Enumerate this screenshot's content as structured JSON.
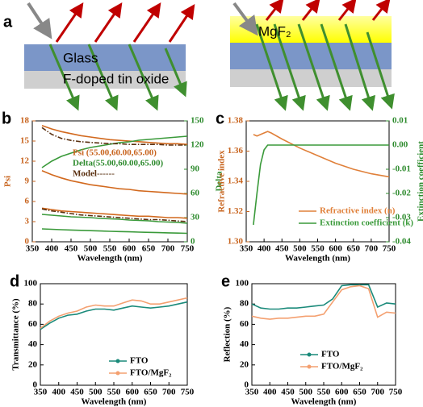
{
  "diagram": {
    "label": "a",
    "layers_left": [
      "Glass",
      "F-doped tin oxide"
    ],
    "layer_right": "MgF₂"
  },
  "chart_data": [
    {
      "type": "line",
      "panel": "b",
      "xlabel": "Wavelength (nm)",
      "ylabel": "Psi",
      "y2label": "Delta",
      "ycolor": "#c8641e",
      "y2color": "#2e8b2e",
      "xlim": [
        350,
        750
      ],
      "xticks": [
        350,
        400,
        450,
        500,
        550,
        600,
        650,
        700,
        750
      ],
      "ylim": [
        0,
        18
      ],
      "yticks": [
        0,
        3,
        6,
        9,
        12,
        15,
        18
      ],
      "y2lim": [
        0,
        150
      ],
      "y2ticks": [
        0,
        30,
        60,
        90,
        120,
        150
      ],
      "x": [
        375,
        400,
        425,
        450,
        475,
        500,
        525,
        550,
        575,
        600,
        625,
        650,
        675,
        700,
        725,
        750
      ],
      "series": [
        {
          "color": "#d2691e",
          "values": [
            17.3,
            16.8,
            16.4,
            16.1,
            15.8,
            15.6,
            15.4,
            15.2,
            15.1,
            15.0,
            14.9,
            14.8,
            14.7,
            14.6,
            14.6,
            14.5
          ]
        },
        {
          "color": "#d2691e",
          "values": [
            10.6,
            10.0,
            9.5,
            9.1,
            8.8,
            8.5,
            8.3,
            8.1,
            7.9,
            7.8,
            7.6,
            7.5,
            7.4,
            7.3,
            7.2,
            7.1
          ]
        },
        {
          "color": "#d2691e",
          "values": [
            5.0,
            4.8,
            4.6,
            4.5,
            4.4,
            4.3,
            4.2,
            4.1,
            4.0,
            3.9,
            3.8,
            3.8,
            3.7,
            3.6,
            3.6,
            3.5
          ]
        },
        {
          "color": "#3a9a3a",
          "axis": "y2",
          "values": [
            92,
            100,
            106,
            110,
            114,
            117,
            119,
            121,
            123,
            124,
            126,
            127,
            128,
            129,
            130,
            131
          ]
        },
        {
          "color": "#3a9a3a",
          "axis": "y2",
          "values": [
            34,
            33,
            32,
            31,
            30.5,
            30,
            29,
            28.5,
            28,
            27,
            26.5,
            26,
            25,
            24.5,
            24,
            23
          ]
        },
        {
          "color": "#3a9a3a",
          "axis": "y2",
          "values": [
            16,
            15.5,
            15,
            14.6,
            14.2,
            13.8,
            13.4,
            13,
            12.7,
            12.4,
            12,
            11.7,
            11.4,
            11.1,
            10.8,
            10.5
          ]
        },
        {
          "color": "#5a3010",
          "dash": true,
          "values": [
            17.0,
            16.0,
            15.4,
            15.1,
            14.9,
            14.8,
            14.7,
            14.6,
            14.6,
            14.5,
            14.5,
            14.5,
            14.5,
            14.4,
            14.4,
            14.4
          ]
        },
        {
          "color": "#5a3010",
          "dash": true,
          "values": [
            4.9,
            4.6,
            4.4,
            4.2,
            4.0,
            3.9,
            3.8,
            3.7,
            3.6,
            3.5,
            3.4,
            3.3,
            3.3,
            3.2,
            3.1,
            3.0
          ]
        }
      ],
      "legend": [
        {
          "label": "Psi (55.00,60.00,65.00)",
          "color": "#c8641e"
        },
        {
          "label": "Delta(55.00,60.00,65.00)",
          "color": "#2e8b2e"
        },
        {
          "label": "Model------",
          "color": "#5a3010"
        }
      ]
    },
    {
      "type": "line",
      "panel": "c",
      "xlabel": "Wavelength (nm)",
      "ylabel": "Refractive index",
      "y2label": "Extinction coefficient",
      "ycolor": "#c8641e",
      "y2color": "#2e8b2e",
      "xlim": [
        350,
        750
      ],
      "xticks": [
        350,
        400,
        450,
        500,
        550,
        600,
        650,
        700,
        750
      ],
      "ylim": [
        1.3,
        1.38
      ],
      "yticks": [
        {
          "value": 1.3,
          "label": "1.30"
        },
        {
          "value": 1.32,
          "label": "1.32"
        },
        {
          "value": 1.34,
          "label": "1.34"
        },
        {
          "value": 1.36,
          "label": "1.36"
        },
        {
          "value": 1.38,
          "label": "1.38"
        }
      ],
      "y2lim": [
        -0.04,
        0.01
      ],
      "y2ticks": [
        -0.04,
        -0.03,
        -0.02,
        -0.01,
        {
          "value": 0,
          "label": "0.00"
        },
        0.01
      ],
      "x": [
        370,
        380,
        390,
        400,
        410,
        420,
        450,
        500,
        550,
        600,
        650,
        700,
        750
      ],
      "series": [
        {
          "name": "Refractive index (n)",
          "color": "#e0803a",
          "values": [
            1.371,
            1.37,
            1.371,
            1.372,
            1.373,
            1.372,
            1.368,
            1.362,
            1.357,
            1.352,
            1.348,
            1.345,
            1.343
          ]
        },
        {
          "name": "Extinction coefficient (k)",
          "color": "#3a9a3a",
          "axis": "y2",
          "values": [
            -0.033,
            -0.02,
            -0.008,
            -0.002,
            0,
            0,
            0,
            0,
            0,
            0,
            0,
            0,
            0
          ]
        }
      ]
    },
    {
      "type": "line",
      "panel": "d",
      "xlabel": "Wavelength (nm)",
      "ylabel": "Transmittance (%)",
      "xlim": [
        350,
        750
      ],
      "xticks": [
        350,
        400,
        450,
        500,
        550,
        600,
        650,
        700,
        750
      ],
      "ylim": [
        0,
        100
      ],
      "yticks": [
        0,
        20,
        40,
        60,
        80,
        100
      ],
      "x": [
        350,
        375,
        400,
        425,
        450,
        475,
        500,
        525,
        550,
        575,
        600,
        625,
        650,
        675,
        700,
        725,
        750
      ],
      "series": [
        {
          "name": "FTO",
          "color": "#1a8a7a",
          "values": [
            55,
            61,
            66,
            69,
            70,
            73,
            75,
            75,
            74,
            76,
            78,
            77,
            76,
            77,
            78,
            80,
            82
          ]
        },
        {
          "name": "FTO/MgF₂",
          "color": "#f4a070",
          "values": [
            56,
            63,
            68,
            71,
            73,
            77,
            79,
            78,
            78,
            81,
            84,
            83,
            80,
            80,
            82,
            84,
            86
          ]
        }
      ]
    },
    {
      "type": "line",
      "panel": "e",
      "xlabel": "Wavelength (nm)",
      "ylabel": "Reflection (%)",
      "xlim": [
        350,
        750
      ],
      "xticks": [
        350,
        400,
        450,
        500,
        550,
        600,
        650,
        700,
        750
      ],
      "ylim": [
        0,
        100
      ],
      "yticks": [
        0,
        20,
        40,
        60,
        80,
        100
      ],
      "x": [
        350,
        375,
        400,
        425,
        450,
        475,
        500,
        525,
        550,
        575,
        600,
        625,
        650,
        675,
        700,
        725,
        750
      ],
      "series": [
        {
          "name": "FTO",
          "color": "#1a8a7a",
          "values": [
            80,
            76,
            75,
            75,
            76,
            76,
            77,
            78,
            79,
            85,
            98,
            99,
            99,
            99,
            77,
            81,
            80
          ]
        },
        {
          "name": "FTO/MgF₂",
          "color": "#f4a070",
          "values": [
            68,
            66,
            65,
            66,
            66,
            67,
            68,
            68,
            70,
            82,
            94,
            97,
            98,
            95,
            67,
            72,
            71
          ]
        }
      ]
    }
  ]
}
